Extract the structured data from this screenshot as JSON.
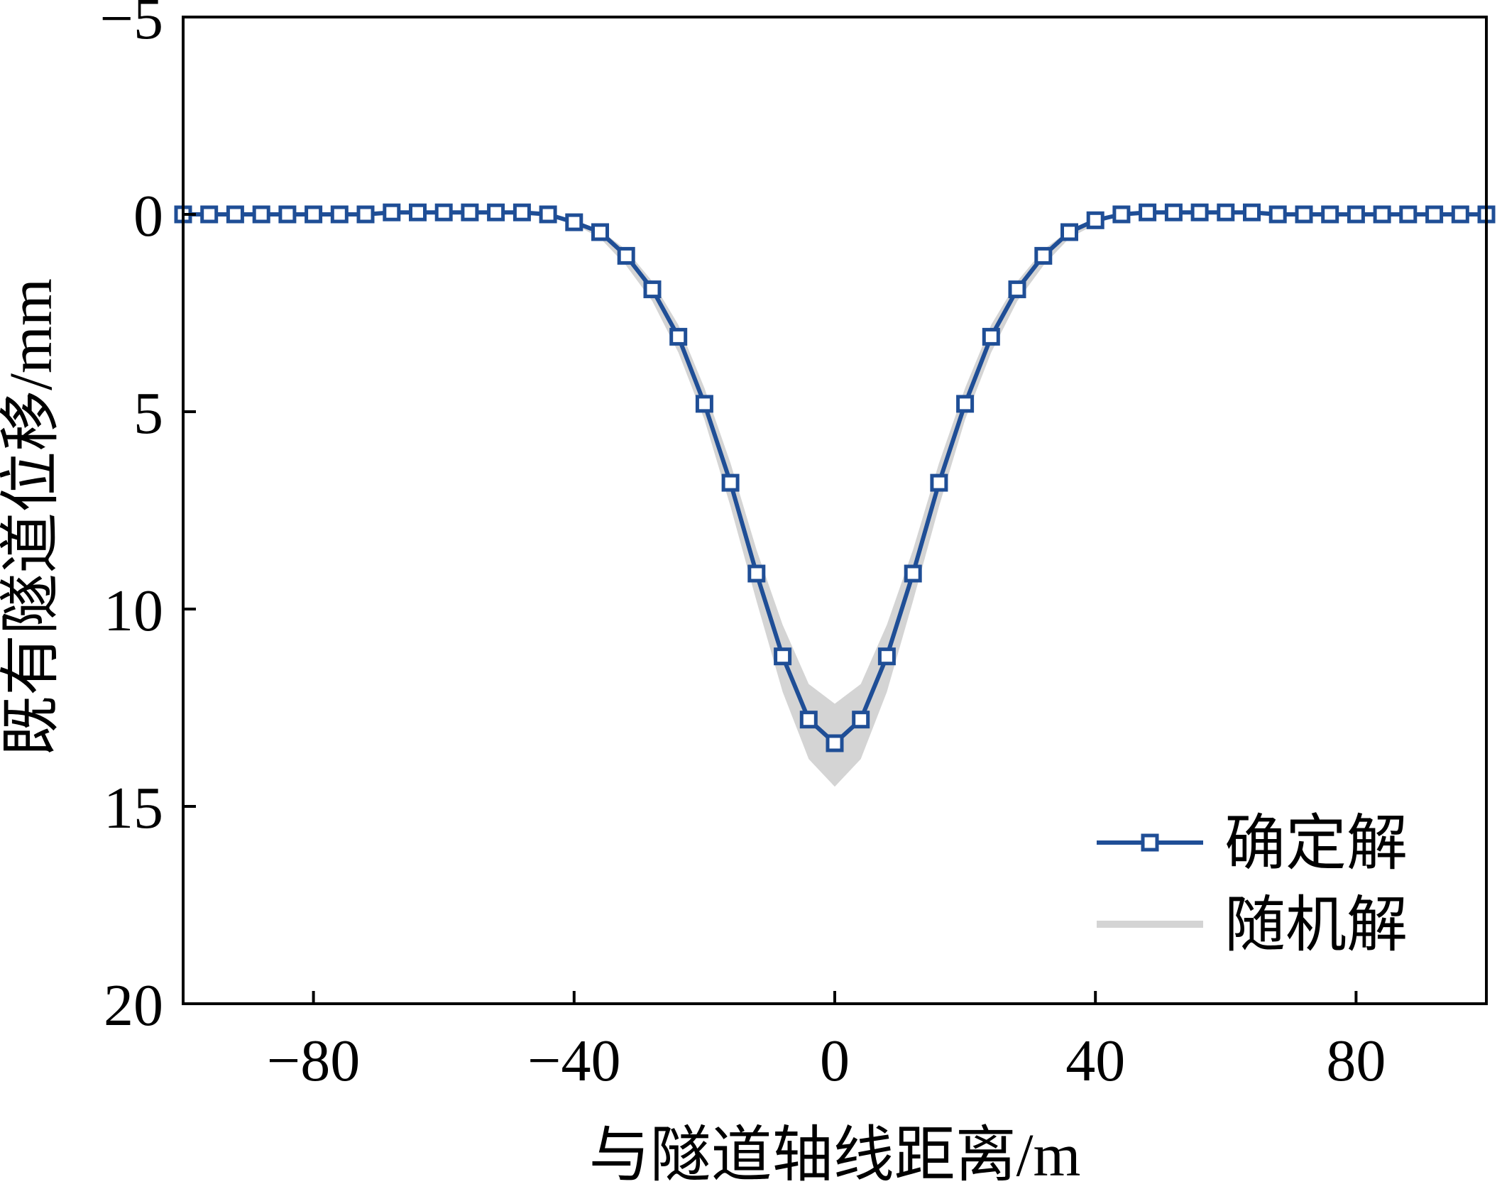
{
  "chart_data": {
    "type": "line",
    "title": "",
    "xlabel": "与隧道轴线距离/m",
    "ylabel": "既有隧道位移/mm",
    "xlim": [
      -100,
      100
    ],
    "ylim": [
      -5,
      20
    ],
    "y_inverted": true,
    "xticks": [
      -80,
      -40,
      0,
      40,
      80
    ],
    "xtick_labels": [
      "−80",
      "−40",
      "0",
      "40",
      "80"
    ],
    "yticks": [
      -5,
      0,
      5,
      10,
      15,
      20
    ],
    "ytick_labels": [
      "−5",
      "0",
      "5",
      "10",
      "15",
      "20"
    ],
    "grid": false,
    "legend_position": "bottom-right",
    "colors": {
      "deterministic": "#1f4e96",
      "random_band": "#d4d4d4"
    },
    "series": [
      {
        "name": "确定解",
        "marker": "square",
        "x": [
          -100,
          -96,
          -92,
          -88,
          -84,
          -80,
          -76,
          -72,
          -68,
          -64,
          -60,
          -56,
          -52,
          -48,
          -44,
          -40,
          -36,
          -32,
          -28,
          -24,
          -20,
          -16,
          -12,
          -8,
          -4,
          0,
          4,
          8,
          12,
          16,
          20,
          24,
          28,
          32,
          36,
          40,
          44,
          48,
          52,
          56,
          60,
          64,
          68,
          72,
          76,
          80,
          84,
          88,
          92,
          96,
          100
        ],
        "y": [
          0,
          0,
          0,
          0,
          0,
          0,
          0,
          0,
          -0.05,
          -0.05,
          -0.05,
          -0.05,
          -0.05,
          -0.05,
          0,
          0.2,
          0.45,
          1.05,
          1.9,
          3.1,
          4.8,
          6.8,
          9.1,
          11.2,
          12.8,
          13.4,
          12.8,
          11.2,
          9.1,
          6.8,
          4.8,
          3.1,
          1.9,
          1.05,
          0.45,
          0.15,
          0,
          -0.05,
          -0.05,
          -0.05,
          -0.05,
          -0.05,
          0,
          0,
          0,
          0,
          0,
          0,
          0,
          0,
          0
        ]
      },
      {
        "name": "随机解",
        "type": "band",
        "x": [
          -44,
          -40,
          -36,
          -32,
          -28,
          -24,
          -20,
          -16,
          -12,
          -8,
          -4,
          0,
          4,
          8,
          12,
          16,
          20,
          24,
          28,
          32,
          36,
          40,
          44
        ],
        "lower": [
          0,
          0.15,
          0.4,
          0.9,
          1.7,
          2.8,
          4.4,
          6.3,
          8.5,
          10.4,
          11.9,
          12.4,
          11.9,
          10.4,
          8.5,
          6.3,
          4.4,
          2.8,
          1.7,
          0.9,
          0.4,
          0.15,
          0
        ],
        "upper": [
          0,
          0.25,
          0.6,
          1.3,
          2.2,
          3.5,
          5.2,
          7.4,
          9.8,
          12.1,
          13.8,
          14.5,
          13.8,
          12.1,
          9.8,
          7.4,
          5.2,
          3.5,
          2.2,
          1.3,
          0.6,
          0.25,
          0
        ]
      }
    ]
  }
}
